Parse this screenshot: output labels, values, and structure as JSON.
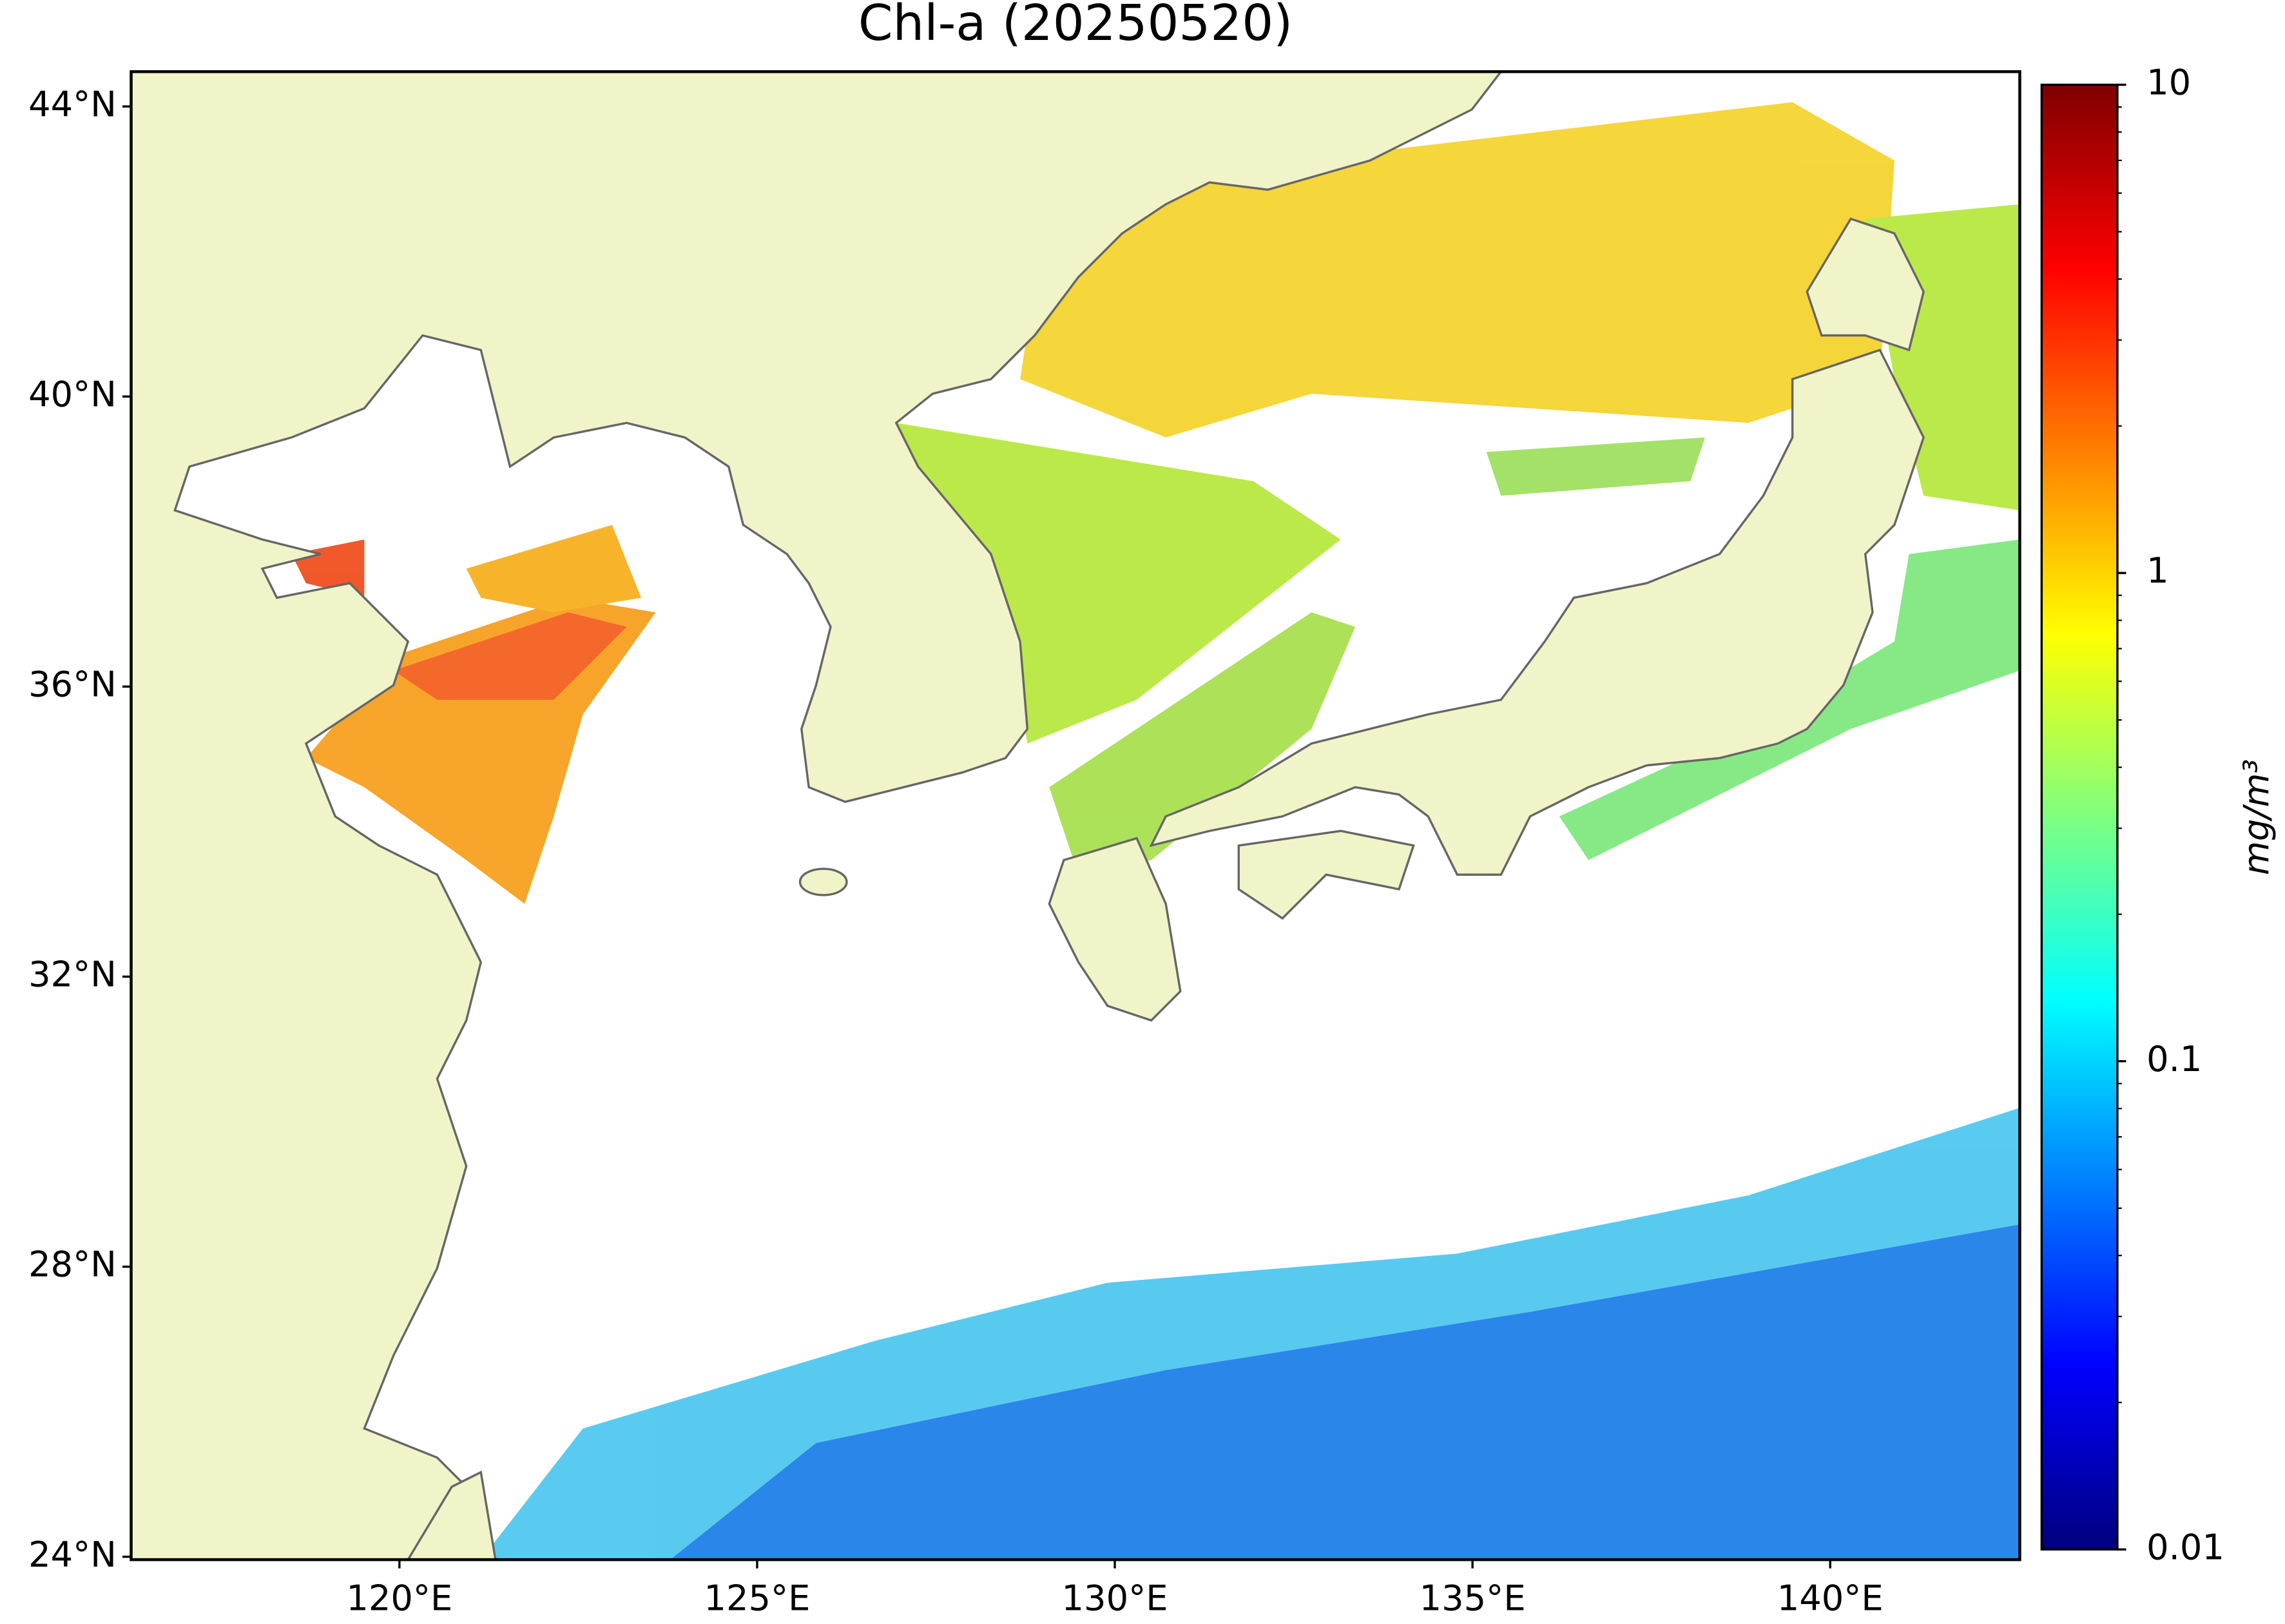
{
  "chart_data": {
    "type": "map",
    "title": "Chl-a (20250520)",
    "xlim": [
      116.25,
      142.65
    ],
    "ylim": [
      23.96,
      44.48
    ],
    "xticks": [
      {
        "value": 120,
        "label": "120°E"
      },
      {
        "value": 125,
        "label": "125°E"
      },
      {
        "value": 130,
        "label": "130°E"
      },
      {
        "value": 135,
        "label": "135°E"
      },
      {
        "value": 140,
        "label": "140°E"
      }
    ],
    "yticks": [
      {
        "value": 24,
        "label": "24°N"
      },
      {
        "value": 28,
        "label": "28°N"
      },
      {
        "value": 32,
        "label": "32°N"
      },
      {
        "value": 36,
        "label": "36°N"
      },
      {
        "value": 40,
        "label": "40°N"
      },
      {
        "value": 44,
        "label": "44°N"
      }
    ],
    "colorbar": {
      "label": "mg/m³",
      "log": true,
      "lim": [
        0.01,
        10
      ],
      "ticks": [
        0.01,
        0.1,
        1,
        10
      ],
      "colormap": [
        "#00007f",
        "#0000ff",
        "#007fff",
        "#00ffff",
        "#7fff7f",
        "#ffff00",
        "#ff7f00",
        "#ff0000",
        "#7f0000"
      ]
    }
  }
}
